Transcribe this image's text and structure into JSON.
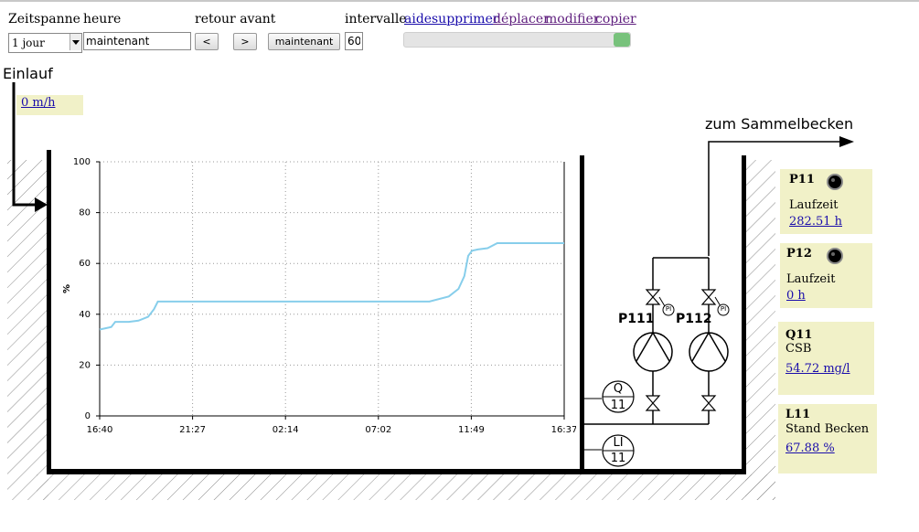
{
  "toolbar": {
    "zeitspanne_label": "Zeitspanne",
    "heure_label": "heure",
    "retour_avant_label": "retour avant",
    "intervalle_label": "intervalle",
    "zeitspanne_value": "1 jour",
    "heure_value": "maintenant",
    "back_label": "<",
    "forward_label": ">",
    "now_label": "maintenant",
    "intervalle_value": "60",
    "links": {
      "aide": "aide",
      "supprimer": "supprimer",
      "deplacer": "déplacer",
      "modifier": "modifier",
      "copier": "copier"
    },
    "slider_position": 1.0
  },
  "scheme": {
    "einlauf_label": "Einlauf",
    "einlauf_value": "0 m/h",
    "outlet_label": "zum Sammelbecken",
    "pump1_label": "P111",
    "pump2_label": "P112",
    "pi_label": "PI",
    "q_label": "Q",
    "q_number": "11",
    "li_label": "LI",
    "li_number": "11"
  },
  "panels": {
    "p11": {
      "title": "P11",
      "label": "Laufzeit",
      "value": "282.51 h"
    },
    "p12": {
      "title": "P12",
      "label": "Laufzeit",
      "value": "0 h"
    },
    "q11": {
      "title": "Q11",
      "label": "CSB",
      "value": "54.72 mg/l"
    },
    "l11": {
      "title": "L11",
      "label": "Stand Becken",
      "value": "67.88 %"
    }
  },
  "colors": {
    "line": "#87ceeb",
    "panel": "#f1f1c8",
    "slider_thumb": "#78c27c"
  },
  "chart_data": {
    "type": "line",
    "title": "",
    "xlabel": "",
    "ylabel": "%",
    "ylim": [
      0,
      100
    ],
    "yticks": [
      "0",
      "20",
      "40",
      "60",
      "80",
      "100"
    ],
    "xticks": [
      "16:40",
      "21:27",
      "02:14",
      "07:02",
      "11:49",
      "16:37"
    ],
    "grid": true,
    "x_hours": [
      0,
      0.3,
      0.6,
      0.8,
      1.0,
      1.5,
      2.0,
      2.5,
      2.8,
      3.0,
      3.2,
      3.5,
      5.0,
      10.0,
      15.0,
      17.0,
      18.0,
      18.5,
      18.8,
      19.0,
      19.2,
      19.5,
      20.0,
      20.5,
      21.0,
      22.0,
      23.95
    ],
    "values": [
      34,
      34.5,
      35,
      37,
      37,
      37,
      37.5,
      39,
      42,
      45,
      45,
      45,
      45,
      45,
      45,
      45,
      47,
      50,
      55,
      63,
      65,
      65.5,
      66,
      68,
      68,
      68,
      68
    ]
  }
}
